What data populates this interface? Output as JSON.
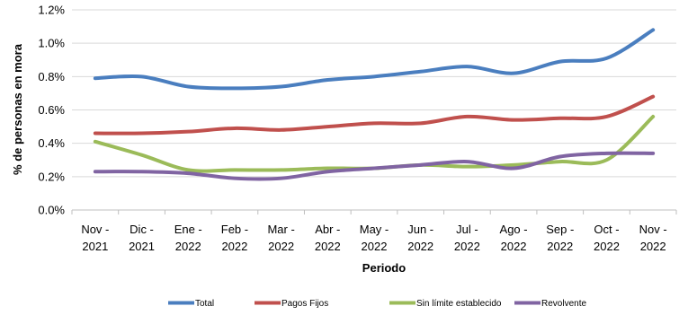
{
  "chart_data": {
    "type": "line",
    "title": "",
    "xlabel": "Periodo",
    "ylabel": "% de personas en mora",
    "ylim": [
      0,
      1.2
    ],
    "yticks": [
      "0.0%",
      "0.2%",
      "0.4%",
      "0.6%",
      "0.8%",
      "1.0%",
      "1.2%"
    ],
    "categories": [
      [
        "Nov -",
        "2021"
      ],
      [
        "Dic -",
        "2021"
      ],
      [
        "Ene -",
        "2022"
      ],
      [
        "Feb -",
        "2022"
      ],
      [
        "Mar -",
        "2022"
      ],
      [
        "Abr -",
        "2022"
      ],
      [
        "May -",
        "2022"
      ],
      [
        "Jun -",
        "2022"
      ],
      [
        "Jul -",
        "2022"
      ],
      [
        "Ago -",
        "2022"
      ],
      [
        "Sep -",
        "2022"
      ],
      [
        "Oct -",
        "2022"
      ],
      [
        "Nov -",
        "2022"
      ]
    ],
    "grid": "horizontal",
    "legend_position": "bottom",
    "series": [
      {
        "name": "Total",
        "color": "#4a7ebf",
        "values": [
          0.79,
          0.8,
          0.74,
          0.73,
          0.74,
          0.78,
          0.8,
          0.83,
          0.86,
          0.82,
          0.89,
          0.91,
          1.08
        ]
      },
      {
        "name": "Pagos Fijos",
        "color": "#c0504d",
        "values": [
          0.46,
          0.46,
          0.47,
          0.49,
          0.48,
          0.5,
          0.52,
          0.52,
          0.56,
          0.54,
          0.55,
          0.56,
          0.68
        ]
      },
      {
        "name": "Sin límite establecido",
        "color": "#9bbb59",
        "values": [
          0.41,
          0.33,
          0.24,
          0.24,
          0.24,
          0.25,
          0.25,
          0.27,
          0.26,
          0.27,
          0.29,
          0.3,
          0.56
        ]
      },
      {
        "name": "Revolvente",
        "color": "#8064a2",
        "values": [
          0.23,
          0.23,
          0.22,
          0.19,
          0.19,
          0.23,
          0.25,
          0.27,
          0.29,
          0.25,
          0.32,
          0.34,
          0.34
        ]
      }
    ]
  }
}
